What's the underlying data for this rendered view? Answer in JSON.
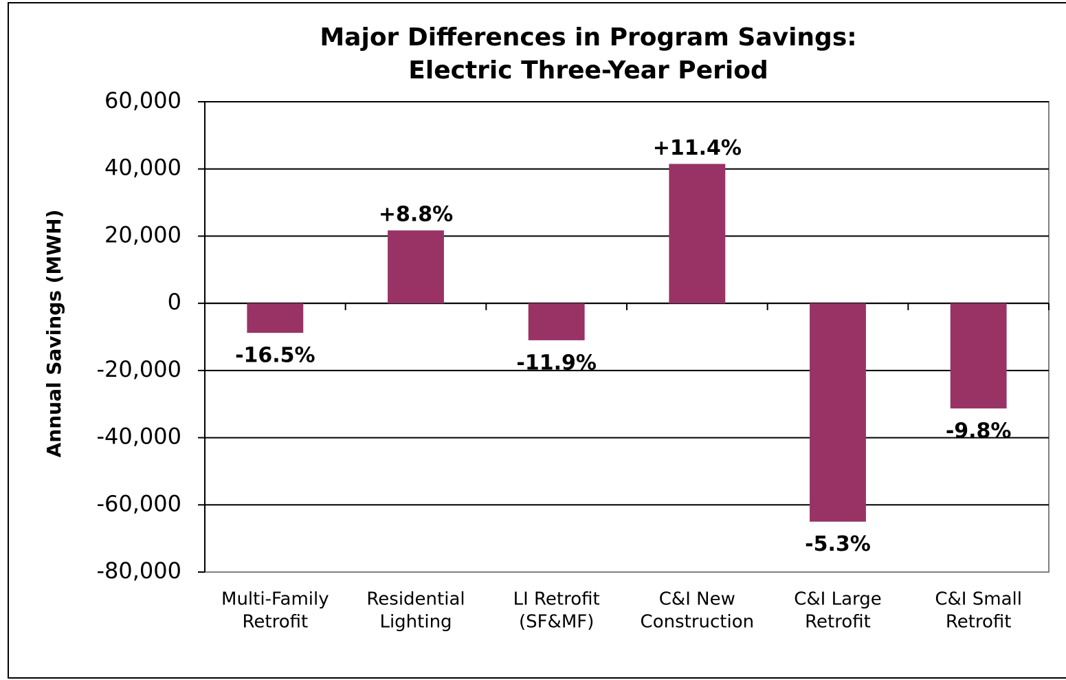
{
  "chart_data": {
    "type": "bar",
    "title": [
      "Major Differences in Program Savings:",
      "Electric Three-Year Period"
    ],
    "y_label": "Annual Savings (MWH)",
    "categories": [
      [
        "Multi-Family",
        "Retrofit"
      ],
      [
        "Residential",
        "Lighting"
      ],
      [
        "LI Retrofit",
        "(SF&MF)"
      ],
      [
        "C&I New",
        "Construction"
      ],
      [
        "C&I Large",
        "Retrofit"
      ],
      [
        "C&I Small",
        "Retrofit"
      ]
    ],
    "values": [
      -8800,
      21700,
      -11000,
      41500,
      -65000,
      -31300
    ],
    "annotations": [
      "-16.5%",
      "+8.8%",
      "-11.9%",
      "+11.4%",
      "-5.3%",
      "-9.8%"
    ],
    "color": "#993366",
    "ylim": [
      -80000,
      60000
    ],
    "yticks": [
      {
        "value": -80000,
        "label": "-80,000"
      },
      {
        "value": -60000,
        "label": "-60,000"
      },
      {
        "value": -40000,
        "label": "-40,000"
      },
      {
        "value": -20000,
        "label": "-20,000"
      },
      0,
      {
        "value": 20000,
        "label": "20,000"
      },
      {
        "value": 40000,
        "label": "40,000"
      },
      {
        "value": 60000,
        "label": "60,000"
      }
    ],
    "grid": true
  }
}
